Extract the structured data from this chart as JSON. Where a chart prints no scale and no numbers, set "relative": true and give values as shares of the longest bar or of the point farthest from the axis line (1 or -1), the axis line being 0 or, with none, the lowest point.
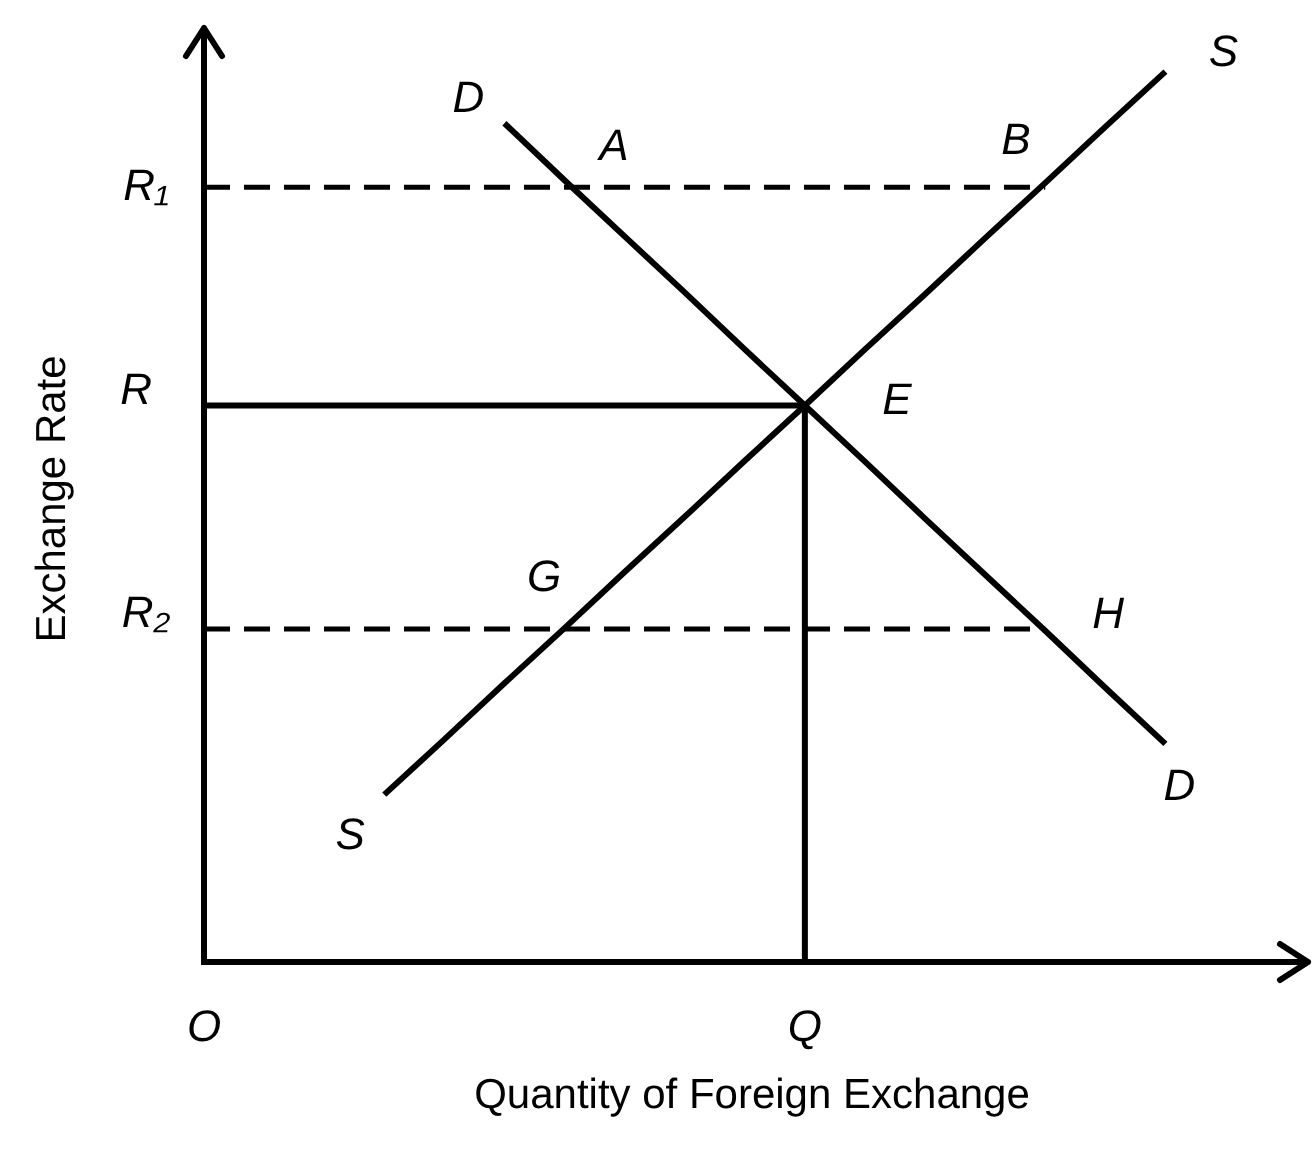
{
  "chart_data": {
    "type": "line",
    "xlabel": "Quantity of Foreign Exchange",
    "ylabel": "Exchange Rate",
    "relative": true,
    "grid": false,
    "legend": false,
    "marker": "none",
    "categories": [
      "O",
      null,
      null,
      null,
      null,
      null,
      null,
      null,
      null,
      null,
      "Q",
      null,
      null,
      null,
      null,
      null,
      null
    ],
    "series": [
      {
        "name": "D",
        "color": "#000000",
        "values": [
          null,
          null,
          null,
          null,
          null,
          0.942,
          0.878,
          0.815,
          0.752,
          0.688,
          0.625,
          0.562,
          0.498,
          0.435,
          0.372,
          0.308,
          0.245
        ]
      },
      {
        "name": "S",
        "color": "#000000",
        "values": [
          null,
          null,
          null,
          0.188,
          0.25,
          0.313,
          0.375,
          0.438,
          0.5,
          0.563,
          0.625,
          0.688,
          0.75,
          0.813,
          0.875,
          0.938,
          1
        ]
      },
      {
        "name": "R₁",
        "color": "#000000",
        "line_style": "dashed",
        "values": [
          0.87,
          0.87,
          0.87,
          0.87,
          0.87,
          0.87,
          0.87,
          0.87,
          0.87,
          0.87,
          0.87,
          0.87,
          0.87,
          0.87,
          0.87,
          null,
          null
        ]
      },
      {
        "name": "R",
        "color": "#000000",
        "values": [
          0.625,
          0.625,
          0.625,
          0.625,
          0.625,
          0.625,
          0.625,
          0.625,
          0.625,
          0.625,
          0.625,
          null,
          null,
          null,
          null,
          null,
          null
        ]
      },
      {
        "name": "R₂",
        "color": "#000000",
        "line_style": "dashed",
        "values": [
          0.374,
          0.374,
          0.374,
          0.374,
          0.374,
          0.374,
          0.374,
          0.374,
          0.374,
          0.374,
          0.374,
          0.374,
          0.374,
          0.374,
          0.374,
          null,
          null
        ]
      },
      {
        "color": "#000000",
        "x": [
          "Q",
          "Q"
        ],
        "values": [
          0,
          0.625
        ]
      }
    ],
    "annotations": [
      {
        "text": "A",
        "y": 0.87
      },
      {
        "text": "B",
        "y": 0.87
      },
      {
        "text": "E",
        "x": "Q",
        "y": 0.625
      },
      {
        "text": "G",
        "y": 0.374
      },
      "H"
    ]
  }
}
